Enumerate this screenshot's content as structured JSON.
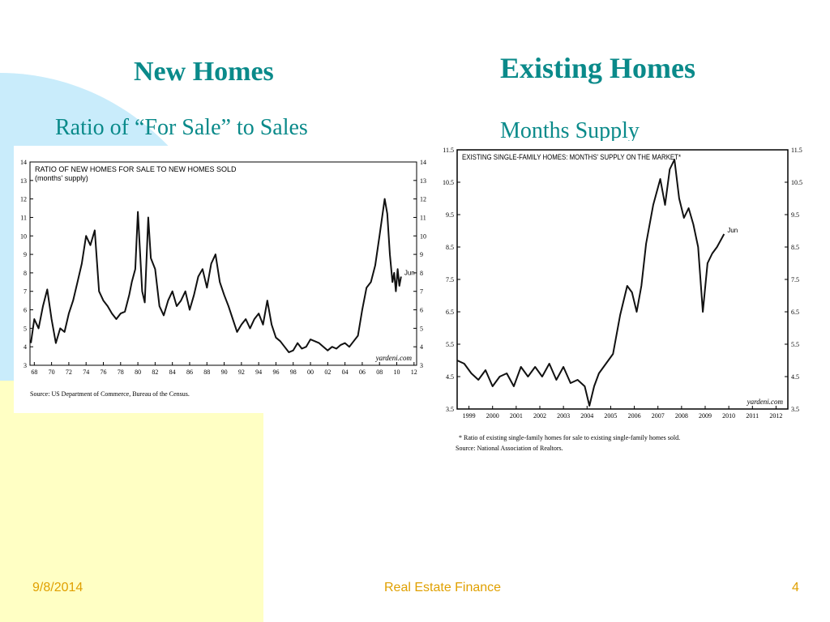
{
  "slide": {
    "left_title": "New Homes",
    "left_subtitle": "Ratio of “For Sale” to Sales",
    "right_title": "Existing Homes",
    "right_subtitle": "Months Supply"
  },
  "footer": {
    "date": "9/8/2014",
    "center": "Real Estate Finance",
    "page_number": "4"
  },
  "colors": {
    "heading": "#0a8a8a",
    "footer": "#e0a000",
    "deco_blue": "#c9ecfb",
    "deco_yellow": "#ffffc4"
  },
  "chart_data": [
    {
      "type": "line",
      "title": "RATIO OF NEW HOMES FOR SALE TO NEW HOMES SOLD",
      "subtitle": "(months' supply)",
      "source": "Source: US Department of Commerce, Bureau of the Census.",
      "watermark": "yardeni.com",
      "end_label": "Jun",
      "xlim": [
        1967.5,
        2012.3
      ],
      "ylim": [
        3,
        14
      ],
      "y_ticks": [
        "3",
        "4",
        "5",
        "6",
        "7",
        "8",
        "9",
        "10",
        "11",
        "12",
        "13",
        "14"
      ],
      "x_ticks": [
        {
          "x": 1968,
          "label": "68"
        },
        {
          "x": 1970,
          "label": "70"
        },
        {
          "x": 1972,
          "label": "72"
        },
        {
          "x": 1974,
          "label": "74"
        },
        {
          "x": 1976,
          "label": "76"
        },
        {
          "x": 1978,
          "label": "78"
        },
        {
          "x": 1980,
          "label": "80"
        },
        {
          "x": 1982,
          "label": "82"
        },
        {
          "x": 1984,
          "label": "84"
        },
        {
          "x": 1986,
          "label": "86"
        },
        {
          "x": 1988,
          "label": "88"
        },
        {
          "x": 1990,
          "label": "90"
        },
        {
          "x": 1992,
          "label": "92"
        },
        {
          "x": 1994,
          "label": "94"
        },
        {
          "x": 1996,
          "label": "96"
        },
        {
          "x": 1998,
          "label": "98"
        },
        {
          "x": 2000,
          "label": "00"
        },
        {
          "x": 2002,
          "label": "02"
        },
        {
          "x": 2004,
          "label": "04"
        },
        {
          "x": 2006,
          "label": "06"
        },
        {
          "x": 2008,
          "label": "08"
        },
        {
          "x": 2010,
          "label": "10"
        },
        {
          "x": 2012,
          "label": "12"
        }
      ],
      "series": [
        {
          "x": [
            1967.6,
            1968.0,
            1968.5,
            1969.0,
            1969.5,
            1970.0,
            1970.5,
            1971.0,
            1971.5,
            1972.0,
            1972.5,
            1973.0,
            1973.5,
            1974.0,
            1974.5,
            1975.0,
            1975.5,
            1976.0,
            1976.5,
            1977.0,
            1977.5,
            1978.0,
            1978.5,
            1979.0,
            1979.3,
            1979.7,
            1980.0,
            1980.5,
            1980.8,
            1981.2,
            1981.5,
            1982.0,
            1982.5,
            1983.0,
            1983.5,
            1984.0,
            1984.5,
            1985.0,
            1985.5,
            1986.0,
            1986.5,
            1987.0,
            1987.5,
            1988.0,
            1988.5,
            1989.0,
            1989.5,
            1990.0,
            1990.5,
            1991.0,
            1991.5,
            1992.0,
            1992.5,
            1993.0,
            1993.5,
            1994.0,
            1994.5,
            1995.0,
            1995.5,
            1996.0,
            1996.5,
            1997.0,
            1997.5,
            1998.0,
            1998.5,
            1999.0,
            1999.5,
            2000.0,
            2000.5,
            2001.0,
            2001.5,
            2002.0,
            2002.5,
            2003.0,
            2003.5,
            2004.0,
            2004.5,
            2005.0,
            2005.5,
            2006.0,
            2006.5,
            2007.0,
            2007.5,
            2008.0,
            2008.3,
            2008.6,
            2008.9,
            2009.2,
            2009.5,
            2009.7,
            2009.9,
            2010.1,
            2010.3,
            2010.5
          ],
          "y": [
            4.2,
            5.5,
            5.0,
            6.2,
            7.1,
            5.5,
            4.2,
            5.0,
            4.8,
            5.8,
            6.5,
            7.5,
            8.5,
            10.0,
            9.5,
            10.3,
            7.0,
            6.5,
            6.2,
            5.8,
            5.5,
            5.8,
            5.9,
            6.8,
            7.5,
            8.2,
            11.3,
            7.0,
            6.4,
            11.0,
            8.8,
            8.2,
            6.2,
            5.7,
            6.5,
            7.0,
            6.2,
            6.5,
            7.0,
            6.0,
            6.8,
            7.8,
            8.2,
            7.2,
            8.5,
            9.0,
            7.5,
            6.8,
            6.2,
            5.5,
            4.8,
            5.2,
            5.5,
            5.0,
            5.5,
            5.8,
            5.2,
            6.5,
            5.2,
            4.5,
            4.3,
            4.0,
            3.7,
            3.8,
            4.2,
            3.9,
            4.0,
            4.4,
            4.3,
            4.2,
            4.0,
            3.8,
            4.0,
            3.9,
            4.1,
            4.2,
            4.0,
            4.3,
            4.6,
            6.0,
            7.2,
            7.5,
            8.4,
            10.0,
            11.0,
            12.0,
            11.2,
            9.0,
            7.5,
            8.0,
            7.0,
            8.2,
            7.3,
            7.8
          ]
        }
      ]
    },
    {
      "type": "line",
      "title": "EXISTING SINGLE-FAMILY HOMES: MONTHS' SUPPLY ON THE MARKET*",
      "footnote": "* Ratio of existing single-family homes for sale to existing single-family homes sold.",
      "source": "Source: National Association of Realtors.",
      "watermark": "yardeni.com",
      "end_label": "Jun",
      "xlim": [
        1999.0,
        2013.0
      ],
      "ylim": [
        3.5,
        11.5
      ],
      "y_ticks": [
        "3.5",
        "4.5",
        "5.5",
        "6.5",
        "7.5",
        "8.5",
        "9.5",
        "10.5",
        "11.5"
      ],
      "x_ticks": [
        {
          "x": 1999.5,
          "label": "1999"
        },
        {
          "x": 2000.5,
          "label": "2000"
        },
        {
          "x": 2001.5,
          "label": "2001"
        },
        {
          "x": 2002.5,
          "label": "2002"
        },
        {
          "x": 2003.5,
          "label": "2003"
        },
        {
          "x": 2004.5,
          "label": "2004"
        },
        {
          "x": 2005.5,
          "label": "2005"
        },
        {
          "x": 2006.5,
          "label": "2006"
        },
        {
          "x": 2007.5,
          "label": "2007"
        },
        {
          "x": 2008.5,
          "label": "2008"
        },
        {
          "x": 2009.5,
          "label": "2009"
        },
        {
          "x": 2010.5,
          "label": "2010"
        },
        {
          "x": 2011.5,
          "label": "2011"
        },
        {
          "x": 2012.5,
          "label": "2012"
        }
      ],
      "series": [
        {
          "x": [
            1999.0,
            1999.3,
            1999.6,
            1999.9,
            2000.2,
            2000.5,
            2000.8,
            2001.1,
            2001.4,
            2001.7,
            2002.0,
            2002.3,
            2002.6,
            2002.9,
            2003.2,
            2003.5,
            2003.8,
            2004.1,
            2004.4,
            2004.6,
            2004.8,
            2005.0,
            2005.3,
            2005.6,
            2005.9,
            2006.2,
            2006.4,
            2006.6,
            2006.8,
            2007.0,
            2007.3,
            2007.6,
            2007.8,
            2008.0,
            2008.2,
            2008.4,
            2008.6,
            2008.8,
            2009.0,
            2009.2,
            2009.4,
            2009.6,
            2009.8,
            2010.0,
            2010.3
          ],
          "y": [
            5.0,
            4.9,
            4.6,
            4.4,
            4.7,
            4.2,
            4.5,
            4.6,
            4.2,
            4.8,
            4.5,
            4.8,
            4.5,
            4.9,
            4.4,
            4.8,
            4.3,
            4.4,
            4.2,
            3.6,
            4.2,
            4.6,
            4.9,
            5.2,
            6.4,
            7.3,
            7.1,
            6.5,
            7.3,
            8.6,
            9.8,
            10.6,
            9.8,
            10.9,
            11.2,
            10.0,
            9.4,
            9.7,
            9.2,
            8.5,
            6.5,
            8.0,
            8.3,
            8.5,
            8.9
          ]
        }
      ]
    }
  ]
}
